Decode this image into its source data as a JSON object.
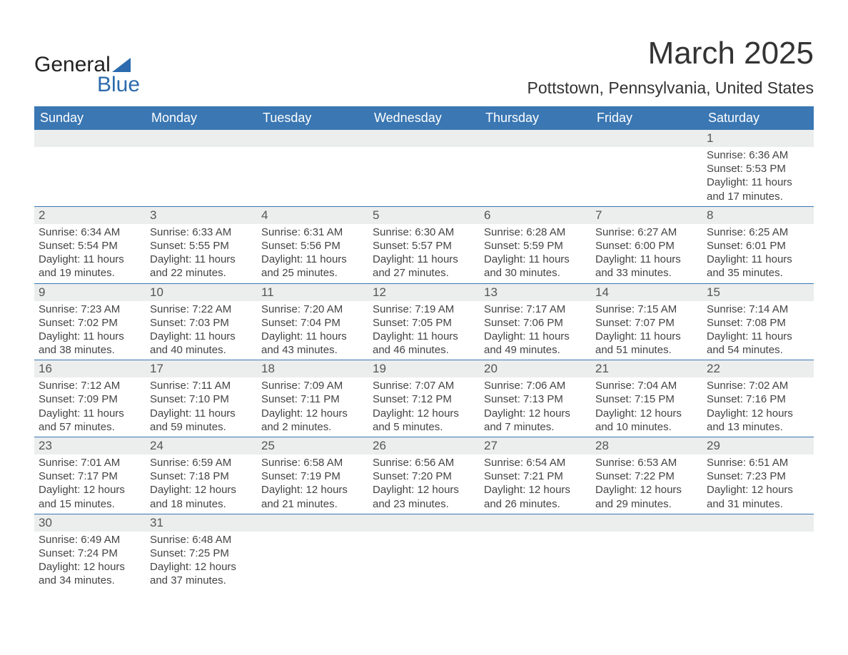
{
  "brand": {
    "general": "General",
    "blue": "Blue"
  },
  "title": "March 2025",
  "location": "Pottstown, Pennsylvania, United States",
  "colors": {
    "header_bg": "#3a77b3",
    "header_text": "#ffffff",
    "daynum_bg": "#eceded",
    "text": "#3a3a3a",
    "accent": "#2c6bad"
  },
  "weekdays": [
    "Sunday",
    "Monday",
    "Tuesday",
    "Wednesday",
    "Thursday",
    "Friday",
    "Saturday"
  ],
  "weeks": [
    [
      {},
      {},
      {},
      {},
      {},
      {},
      {
        "n": "1",
        "sunrise": "6:36 AM",
        "sunset": "5:53 PM",
        "dl1": "Daylight: 11 hours",
        "dl2": "and 17 minutes."
      }
    ],
    [
      {
        "n": "2",
        "sunrise": "6:34 AM",
        "sunset": "5:54 PM",
        "dl1": "Daylight: 11 hours",
        "dl2": "and 19 minutes."
      },
      {
        "n": "3",
        "sunrise": "6:33 AM",
        "sunset": "5:55 PM",
        "dl1": "Daylight: 11 hours",
        "dl2": "and 22 minutes."
      },
      {
        "n": "4",
        "sunrise": "6:31 AM",
        "sunset": "5:56 PM",
        "dl1": "Daylight: 11 hours",
        "dl2": "and 25 minutes."
      },
      {
        "n": "5",
        "sunrise": "6:30 AM",
        "sunset": "5:57 PM",
        "dl1": "Daylight: 11 hours",
        "dl2": "and 27 minutes."
      },
      {
        "n": "6",
        "sunrise": "6:28 AM",
        "sunset": "5:59 PM",
        "dl1": "Daylight: 11 hours",
        "dl2": "and 30 minutes."
      },
      {
        "n": "7",
        "sunrise": "6:27 AM",
        "sunset": "6:00 PM",
        "dl1": "Daylight: 11 hours",
        "dl2": "and 33 minutes."
      },
      {
        "n": "8",
        "sunrise": "6:25 AM",
        "sunset": "6:01 PM",
        "dl1": "Daylight: 11 hours",
        "dl2": "and 35 minutes."
      }
    ],
    [
      {
        "n": "9",
        "sunrise": "7:23 AM",
        "sunset": "7:02 PM",
        "dl1": "Daylight: 11 hours",
        "dl2": "and 38 minutes."
      },
      {
        "n": "10",
        "sunrise": "7:22 AM",
        "sunset": "7:03 PM",
        "dl1": "Daylight: 11 hours",
        "dl2": "and 40 minutes."
      },
      {
        "n": "11",
        "sunrise": "7:20 AM",
        "sunset": "7:04 PM",
        "dl1": "Daylight: 11 hours",
        "dl2": "and 43 minutes."
      },
      {
        "n": "12",
        "sunrise": "7:19 AM",
        "sunset": "7:05 PM",
        "dl1": "Daylight: 11 hours",
        "dl2": "and 46 minutes."
      },
      {
        "n": "13",
        "sunrise": "7:17 AM",
        "sunset": "7:06 PM",
        "dl1": "Daylight: 11 hours",
        "dl2": "and 49 minutes."
      },
      {
        "n": "14",
        "sunrise": "7:15 AM",
        "sunset": "7:07 PM",
        "dl1": "Daylight: 11 hours",
        "dl2": "and 51 minutes."
      },
      {
        "n": "15",
        "sunrise": "7:14 AM",
        "sunset": "7:08 PM",
        "dl1": "Daylight: 11 hours",
        "dl2": "and 54 minutes."
      }
    ],
    [
      {
        "n": "16",
        "sunrise": "7:12 AM",
        "sunset": "7:09 PM",
        "dl1": "Daylight: 11 hours",
        "dl2": "and 57 minutes."
      },
      {
        "n": "17",
        "sunrise": "7:11 AM",
        "sunset": "7:10 PM",
        "dl1": "Daylight: 11 hours",
        "dl2": "and 59 minutes."
      },
      {
        "n": "18",
        "sunrise": "7:09 AM",
        "sunset": "7:11 PM",
        "dl1": "Daylight: 12 hours",
        "dl2": "and 2 minutes."
      },
      {
        "n": "19",
        "sunrise": "7:07 AM",
        "sunset": "7:12 PM",
        "dl1": "Daylight: 12 hours",
        "dl2": "and 5 minutes."
      },
      {
        "n": "20",
        "sunrise": "7:06 AM",
        "sunset": "7:13 PM",
        "dl1": "Daylight: 12 hours",
        "dl2": "and 7 minutes."
      },
      {
        "n": "21",
        "sunrise": "7:04 AM",
        "sunset": "7:15 PM",
        "dl1": "Daylight: 12 hours",
        "dl2": "and 10 minutes."
      },
      {
        "n": "22",
        "sunrise": "7:02 AM",
        "sunset": "7:16 PM",
        "dl1": "Daylight: 12 hours",
        "dl2": "and 13 minutes."
      }
    ],
    [
      {
        "n": "23",
        "sunrise": "7:01 AM",
        "sunset": "7:17 PM",
        "dl1": "Daylight: 12 hours",
        "dl2": "and 15 minutes."
      },
      {
        "n": "24",
        "sunrise": "6:59 AM",
        "sunset": "7:18 PM",
        "dl1": "Daylight: 12 hours",
        "dl2": "and 18 minutes."
      },
      {
        "n": "25",
        "sunrise": "6:58 AM",
        "sunset": "7:19 PM",
        "dl1": "Daylight: 12 hours",
        "dl2": "and 21 minutes."
      },
      {
        "n": "26",
        "sunrise": "6:56 AM",
        "sunset": "7:20 PM",
        "dl1": "Daylight: 12 hours",
        "dl2": "and 23 minutes."
      },
      {
        "n": "27",
        "sunrise": "6:54 AM",
        "sunset": "7:21 PM",
        "dl1": "Daylight: 12 hours",
        "dl2": "and 26 minutes."
      },
      {
        "n": "28",
        "sunrise": "6:53 AM",
        "sunset": "7:22 PM",
        "dl1": "Daylight: 12 hours",
        "dl2": "and 29 minutes."
      },
      {
        "n": "29",
        "sunrise": "6:51 AM",
        "sunset": "7:23 PM",
        "dl1": "Daylight: 12 hours",
        "dl2": "and 31 minutes."
      }
    ],
    [
      {
        "n": "30",
        "sunrise": "6:49 AM",
        "sunset": "7:24 PM",
        "dl1": "Daylight: 12 hours",
        "dl2": "and 34 minutes."
      },
      {
        "n": "31",
        "sunrise": "6:48 AM",
        "sunset": "7:25 PM",
        "dl1": "Daylight: 12 hours",
        "dl2": "and 37 minutes."
      },
      {},
      {},
      {},
      {},
      {}
    ]
  ],
  "labels": {
    "sunrise": "Sunrise: ",
    "sunset": "Sunset: "
  }
}
